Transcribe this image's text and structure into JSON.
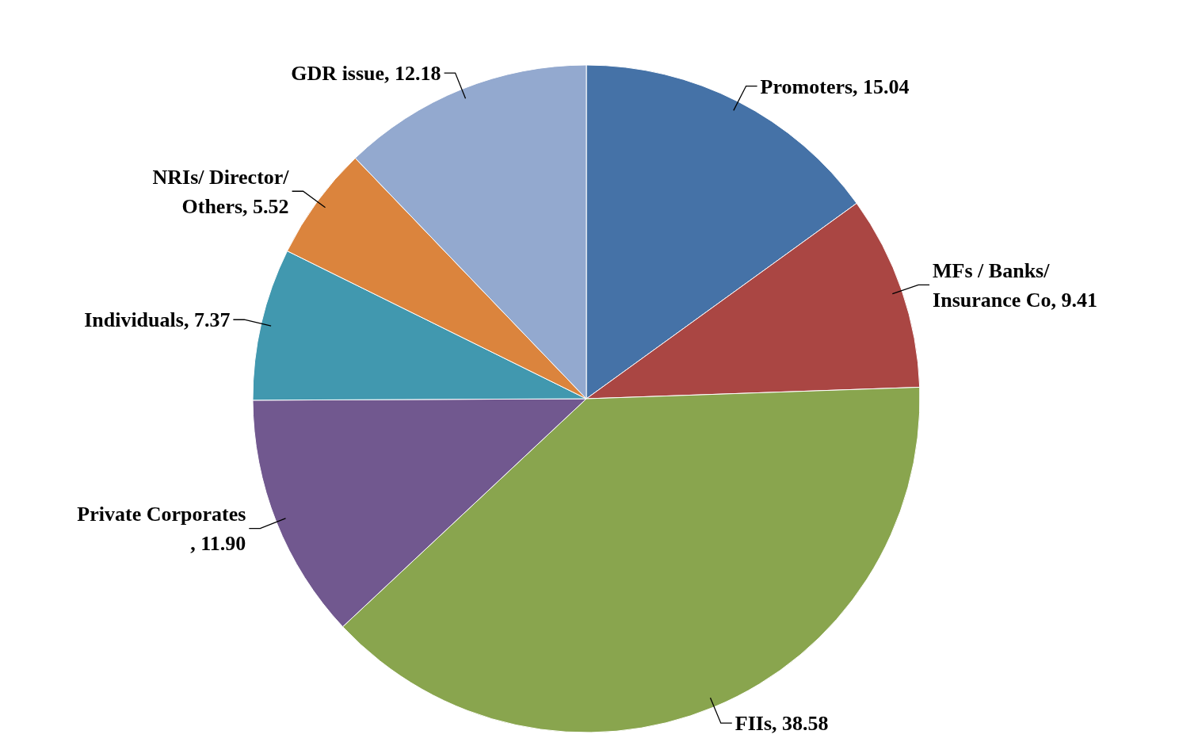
{
  "chart_data": {
    "type": "pie",
    "categories": [
      "Promoters",
      "MFs / Banks/ Insurance Co",
      "FIIs",
      "Private Corporates",
      "Individuals",
      "NRIs/ Director/ Others",
      "GDR issue"
    ],
    "values": [
      15.04,
      9.41,
      38.58,
      11.9,
      7.37,
      5.52,
      12.18
    ],
    "value_labels": [
      ", 15.04",
      ", 9.41",
      ", 38.58",
      ", 11.90",
      ", 7.37",
      ", 5.52",
      ", 12.18"
    ],
    "colors": [
      "#4572a7",
      "#aa4643",
      "#89a54e",
      "#71588f",
      "#4198af",
      "#db843d",
      "#93a9cf"
    ]
  }
}
